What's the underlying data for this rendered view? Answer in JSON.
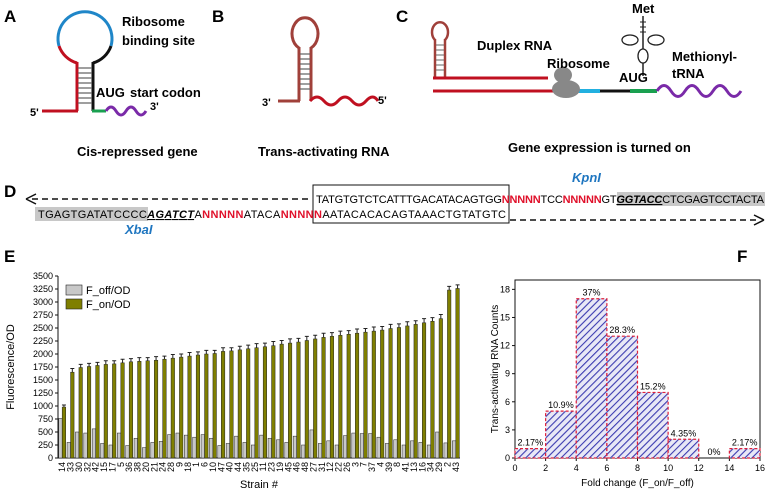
{
  "panels": {
    "A": {
      "letter": "A",
      "rbs": [
        "Ribosome",
        "binding site"
      ],
      "aug": "AUG",
      "codon": "start codon",
      "five": "5'",
      "three": "3'",
      "caption": "Cis-repressed gene"
    },
    "B": {
      "letter": "B",
      "three": "3'",
      "five": "5'",
      "caption": "Trans-activating RNA"
    },
    "C": {
      "letter": "C",
      "met": "Met",
      "duplex": "Duplex RNA",
      "ribosome": "Ribosome",
      "aug": "AUG",
      "trna": [
        "Methionyl-",
        "tRNA"
      ],
      "caption": "Gene expression is turned on"
    },
    "D": {
      "letter": "D",
      "top": [
        "TATGTGTCTCATTTGACATACAG",
        "TGG",
        "NNNNN",
        "TCC",
        "NNNNN",
        "GT",
        "GGTACC",
        "CTCGAGTCCTACTA"
      ],
      "bottom": [
        "TGAGTGATATCCCC",
        "AGATCT",
        "A",
        "NNNNN",
        "ATACA",
        "NNNNN",
        "AATACACACAGTAAACTGTATGTC"
      ],
      "kpn": "KpnI",
      "xba": "XbaI"
    }
  },
  "chart_data": [
    {
      "type": "bar",
      "panel": "E",
      "ylabel": "Fluorescence/OD",
      "xlabel": "Strain #",
      "categories": [
        "14",
        "33",
        "30",
        "32",
        "42",
        "15",
        "17",
        "5",
        "36",
        "38",
        "20",
        "21",
        "24",
        "28",
        "9",
        "18",
        "1",
        "6",
        "10",
        "47",
        "40",
        "44",
        "35",
        "25",
        "11",
        "23",
        "19",
        "45",
        "46",
        "48",
        "27",
        "31",
        "12",
        "22",
        "26",
        "3",
        "7",
        "37",
        "4",
        "39",
        "8",
        "41",
        "13",
        "16",
        "34",
        "29",
        "2",
        "43"
      ],
      "series": [
        {
          "name": "F_off/OD",
          "color": "#c8c8c8",
          "values": [
            760,
            300,
            500,
            480,
            560,
            280,
            250,
            480,
            240,
            380,
            200,
            300,
            320,
            450,
            480,
            440,
            400,
            450,
            380,
            240,
            280,
            420,
            300,
            250,
            440,
            380,
            350,
            300,
            420,
            250,
            540,
            280,
            330,
            250,
            430,
            480,
            470,
            470,
            400,
            280,
            350,
            250,
            330,
            300,
            250,
            500,
            290,
            330
          ]
        },
        {
          "name": "F_on/OD",
          "color": "#7f7f00",
          "values": [
            980,
            1650,
            1740,
            1760,
            1780,
            1800,
            1810,
            1830,
            1850,
            1860,
            1870,
            1880,
            1900,
            1920,
            1940,
            1960,
            1980,
            2000,
            2010,
            2050,
            2060,
            2080,
            2100,
            2120,
            2140,
            2160,
            2190,
            2210,
            2230,
            2260,
            2290,
            2320,
            2340,
            2360,
            2380,
            2400,
            2420,
            2440,
            2460,
            2490,
            2510,
            2540,
            2570,
            2600,
            2630,
            2680,
            3230,
            3260
          ],
          "errors": [
            40,
            70,
            60,
            60,
            60,
            70,
            60,
            70,
            60,
            70,
            60,
            70,
            60,
            70,
            60,
            70,
            60,
            70,
            60,
            70,
            60,
            70,
            70,
            80,
            70,
            80,
            70,
            80,
            70,
            80,
            70,
            80,
            70,
            80,
            70,
            80,
            70,
            80,
            70,
            80,
            70,
            80,
            70,
            80,
            70,
            80,
            70,
            70
          ]
        }
      ],
      "ylim": [
        0,
        3500
      ],
      "yticks": [
        0,
        250,
        500,
        750,
        1000,
        1250,
        1500,
        1750,
        2000,
        2250,
        2500,
        2750,
        3000,
        3250,
        3500
      ]
    },
    {
      "type": "histogram",
      "panel": "F",
      "ylabel": "Trans-activating RNA Counts",
      "xlabel": "Fold change (F_on/F_off)",
      "bins": [
        0,
        2,
        4,
        6,
        8,
        10,
        12,
        14,
        16
      ],
      "values": [
        1,
        5,
        17,
        13,
        7,
        2,
        0,
        1
      ],
      "annotations": [
        "2.17%",
        "10.9%",
        "37%",
        "28.3%",
        "15.2%",
        "4.35%",
        "0%",
        "2.17%"
      ],
      "color": "#3b3bb0",
      "edgecolor": "#e0203a",
      "xlim": [
        0,
        16
      ],
      "xticks": [
        0,
        2,
        4,
        6,
        8,
        10,
        12,
        14,
        16
      ],
      "ylim": [
        0,
        19
      ],
      "yticks": [
        0,
        3,
        6,
        9,
        12,
        15,
        18
      ]
    }
  ]
}
